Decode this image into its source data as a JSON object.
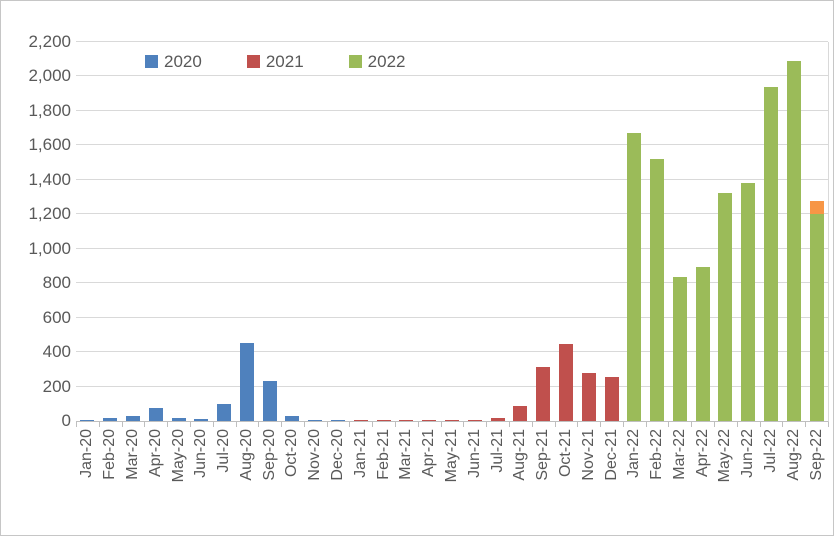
{
  "chart": {
    "background": "#ffffff",
    "border_color": "#c6c6c6",
    "gridline_color": "#d9d9d9",
    "axis_line_color": "#bfbfbf",
    "tick_color": "#bfbfbf",
    "label_color": "#595959",
    "legend": {
      "items": [
        {
          "label": "2020",
          "color": "#4F81BD"
        },
        {
          "label": "2021",
          "color": "#C0504D"
        },
        {
          "label": "2022",
          "color": "#9BBB59"
        }
      ]
    }
  },
  "chart_data": {
    "type": "bar",
    "title": "",
    "xlabel": "",
    "ylabel": "",
    "grid": true,
    "legend_position": "top-inside-left",
    "ylim": [
      0,
      2200
    ],
    "y_tick_step": 200,
    "y_tick_labels": [
      "0",
      "200",
      "400",
      "600",
      "800",
      "1,000",
      "1,200",
      "1,400",
      "1,600",
      "1,800",
      "2,000",
      "2,200"
    ],
    "categories": [
      "Jan-20",
      "Feb-20",
      "Mar-20",
      "Apr-20",
      "May-20",
      "Jun-20",
      "Jul-20",
      "Aug-20",
      "Sep-20",
      "Oct-20",
      "Nov-20",
      "Dec-20",
      "Jan-21",
      "Feb-21",
      "Mar-21",
      "Apr-21",
      "May-21",
      "Jun-21",
      "Jul-21",
      "Aug-21",
      "Sep-21",
      "Oct-21",
      "Nov-21",
      "Dec-21",
      "Jan-22",
      "Feb-22",
      "Mar-22",
      "Apr-22",
      "May-22",
      "Jun-22",
      "Jul-22",
      "Aug-22",
      "Sep-22"
    ],
    "stacking": "stacked",
    "series": [
      {
        "name": "2020",
        "color": "#4F81BD",
        "in_legend": true,
        "values": [
          5,
          15,
          30,
          75,
          15,
          12,
          100,
          450,
          235,
          30,
          8,
          8,
          null,
          null,
          null,
          null,
          null,
          null,
          null,
          null,
          null,
          null,
          null,
          null,
          null,
          null,
          null,
          null,
          null,
          null,
          null,
          null,
          null
        ]
      },
      {
        "name": "2021",
        "color": "#C0504D",
        "in_legend": true,
        "values": [
          null,
          null,
          null,
          null,
          null,
          null,
          null,
          null,
          null,
          null,
          null,
          null,
          5,
          8,
          4,
          8,
          3,
          3,
          18,
          90,
          315,
          445,
          280,
          258,
          null,
          null,
          null,
          null,
          null,
          null,
          null,
          null,
          null
        ]
      },
      {
        "name": "2022",
        "color": "#9BBB59",
        "in_legend": true,
        "values": [
          null,
          null,
          null,
          null,
          null,
          null,
          null,
          null,
          null,
          null,
          null,
          null,
          null,
          null,
          null,
          null,
          null,
          null,
          null,
          null,
          null,
          null,
          null,
          null,
          1670,
          1520,
          835,
          895,
          1325,
          1380,
          1940,
          2090,
          1200
        ]
      },
      {
        "name": "sep-22-top-segment",
        "color": "#F79646",
        "in_legend": false,
        "values": [
          null,
          null,
          null,
          null,
          null,
          null,
          null,
          null,
          null,
          null,
          null,
          null,
          null,
          null,
          null,
          null,
          null,
          null,
          null,
          null,
          null,
          null,
          null,
          null,
          null,
          null,
          null,
          null,
          null,
          null,
          null,
          null,
          80
        ]
      }
    ]
  }
}
